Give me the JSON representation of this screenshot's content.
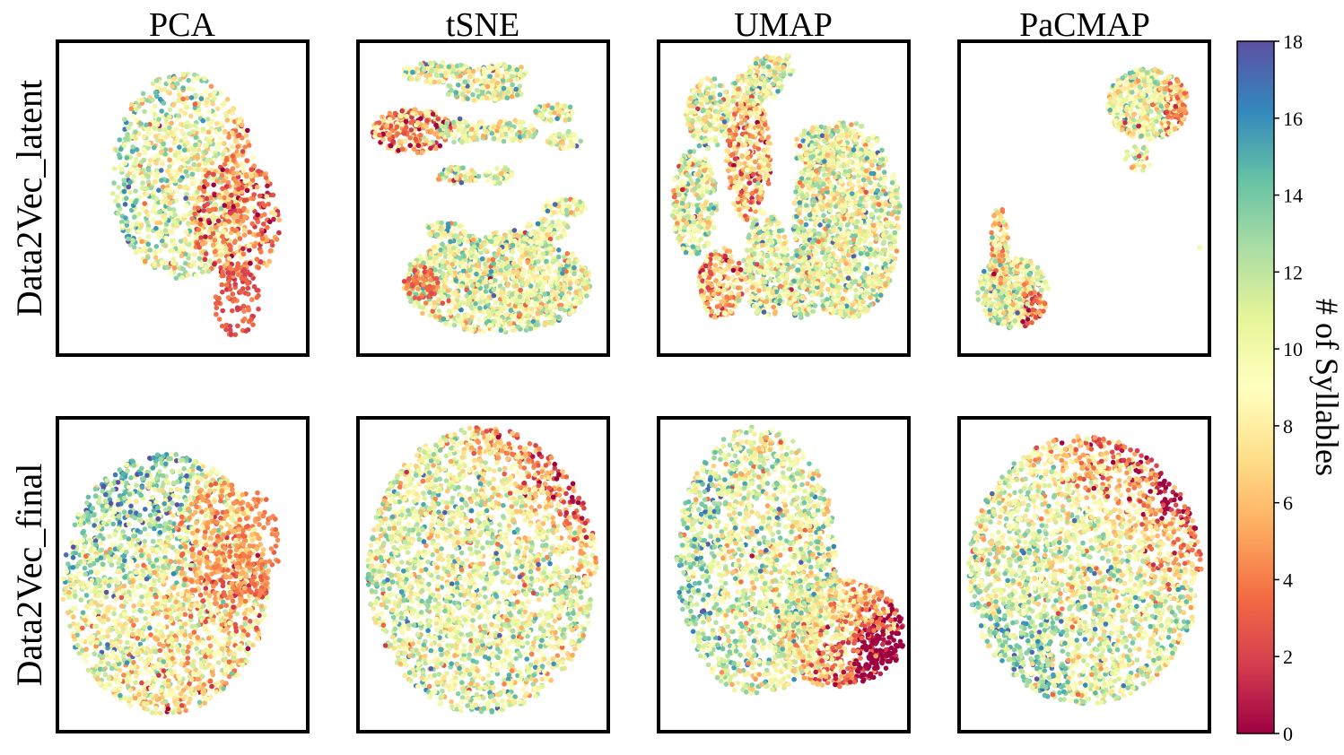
{
  "chart_data": {
    "type": "scatter",
    "columns": [
      "PCA",
      "tSNE",
      "UMAP",
      "PaCMAP"
    ],
    "rows": [
      "Data2Vec_latent",
      "Data2Vec_final"
    ],
    "colorbar": {
      "label": "# of Syllables",
      "colormap": "Spectral",
      "range": [
        0,
        18
      ],
      "ticks": [
        "0",
        "2",
        "4",
        "6",
        "8",
        "10",
        "12",
        "14",
        "16",
        "18"
      ],
      "stops": [
        "#9e0142",
        "#d53e4f",
        "#f46d43",
        "#fdae61",
        "#fee08b",
        "#ffffbf",
        "#e6f598",
        "#abdda4",
        "#66c2a5",
        "#3288bd",
        "#5e4fa2"
      ]
    },
    "axes": {
      "ticks_visible": false,
      "grid": false,
      "frame": "thick black border"
    },
    "panels": [
      {
        "row": "Data2Vec_latent",
        "column": "PCA",
        "points": "approximately 3000 embedded samples colored by syllable count"
      },
      {
        "row": "Data2Vec_latent",
        "column": "tSNE",
        "points": "approximately 3000 embedded samples colored by syllable count"
      },
      {
        "row": "Data2Vec_latent",
        "column": "UMAP",
        "points": "approximately 3000 embedded samples colored by syllable count"
      },
      {
        "row": "Data2Vec_latent",
        "column": "PaCMAP",
        "points": "approximately 3000 embedded samples colored by syllable count"
      },
      {
        "row": "Data2Vec_final",
        "column": "PCA",
        "points": "approximately 3000 embedded samples colored by syllable count"
      },
      {
        "row": "Data2Vec_final",
        "column": "tSNE",
        "points": "approximately 3000 embedded samples colored by syllable count"
      },
      {
        "row": "Data2Vec_final",
        "column": "UMAP",
        "points": "approximately 3000 embedded samples colored by syllable count"
      },
      {
        "row": "Data2Vec_final",
        "column": "PaCMAP",
        "points": "approximately 3000 embedded samples colored by syllable count"
      }
    ]
  }
}
